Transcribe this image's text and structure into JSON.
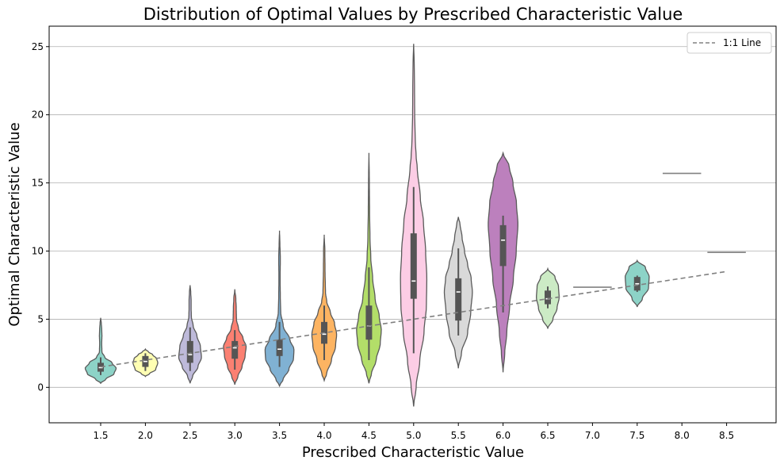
{
  "chart_data": {
    "type": "violin",
    "title": "Distribution of Optimal Values by Prescribed Characteristic Value",
    "xlabel": "Prescribed Characteristic Value",
    "ylabel": "Optimal Characteristic Value",
    "ylim": [
      -2.6,
      26.5
    ],
    "yticks": [
      "0",
      "5",
      "10",
      "15",
      "20",
      "25"
    ],
    "grid": "horizontal",
    "legend": {
      "placement": "top-right",
      "entries": [
        "1:1 Line"
      ]
    },
    "reference_line": {
      "name": "1:1 Line",
      "color": "#808080",
      "x": [
        1.5,
        8.5
      ],
      "y": [
        1.5,
        8.5
      ]
    },
    "categories": [
      "1.5",
      "2.0",
      "2.5",
      "3.0",
      "3.5",
      "4.0",
      "4.5",
      "5.0",
      "5.5",
      "6.0",
      "6.5",
      "7.0",
      "7.5",
      "8.0",
      "8.5"
    ],
    "violins": [
      {
        "category": "1.5",
        "color": "#8dd3c7",
        "q1": 1.15,
        "median": 1.45,
        "q3": 1.8,
        "wlo": 0.9,
        "whi": 2.2,
        "profile": [
          [
            0.3,
            0
          ],
          [
            0.6,
            0.25
          ],
          [
            1.0,
            0.65
          ],
          [
            1.4,
            0.75
          ],
          [
            1.8,
            0.55
          ],
          [
            2.2,
            0.2
          ],
          [
            2.6,
            0.06
          ],
          [
            3.2,
            0.05
          ],
          [
            3.8,
            0.06
          ],
          [
            4.3,
            0.05
          ],
          [
            4.7,
            0.03
          ],
          [
            5.1,
            0
          ]
        ]
      },
      {
        "category": "2.0",
        "color": "#ffffb3",
        "q1": 1.5,
        "median": 1.9,
        "q3": 2.3,
        "wlo": 1.2,
        "whi": 2.5,
        "profile": [
          [
            0.8,
            0
          ],
          [
            1.0,
            0.2
          ],
          [
            1.3,
            0.5
          ],
          [
            1.8,
            0.6
          ],
          [
            2.1,
            0.55
          ],
          [
            2.4,
            0.35
          ],
          [
            2.6,
            0.15
          ],
          [
            2.8,
            0
          ]
        ]
      },
      {
        "category": "2.5",
        "color": "#bebada",
        "q1": 1.8,
        "median": 2.4,
        "q3": 3.4,
        "wlo": 1.2,
        "whi": 4.4,
        "profile": [
          [
            0.3,
            0
          ],
          [
            0.8,
            0.12
          ],
          [
            1.5,
            0.38
          ],
          [
            2.2,
            0.55
          ],
          [
            3.0,
            0.5
          ],
          [
            3.8,
            0.33
          ],
          [
            4.5,
            0.15
          ],
          [
            5.2,
            0.06
          ],
          [
            5.8,
            0.05
          ],
          [
            6.4,
            0.05
          ],
          [
            7.0,
            0.03
          ],
          [
            7.5,
            0
          ]
        ]
      },
      {
        "category": "3.0",
        "color": "#fb8072",
        "q1": 2.1,
        "median": 2.9,
        "q3": 3.4,
        "wlo": 1.3,
        "whi": 4.2,
        "profile": [
          [
            0.2,
            0
          ],
          [
            0.8,
            0.15
          ],
          [
            1.5,
            0.35
          ],
          [
            2.3,
            0.5
          ],
          [
            3.0,
            0.55
          ],
          [
            3.6,
            0.4
          ],
          [
            4.3,
            0.18
          ],
          [
            5.0,
            0.08
          ],
          [
            5.8,
            0.07
          ],
          [
            6.5,
            0.05
          ],
          [
            7.2,
            0
          ]
        ]
      },
      {
        "category": "3.5",
        "color": "#80b1d3",
        "q1": 2.3,
        "median": 2.8,
        "q3": 3.5,
        "wlo": 1.5,
        "whi": 4.8,
        "profile": [
          [
            0.1,
            0
          ],
          [
            0.6,
            0.18
          ],
          [
            1.3,
            0.45
          ],
          [
            2.1,
            0.68
          ],
          [
            2.8,
            0.7
          ],
          [
            3.5,
            0.5
          ],
          [
            4.5,
            0.18
          ],
          [
            5.5,
            0.06
          ],
          [
            6.5,
            0.04
          ],
          [
            8.0,
            0.03
          ],
          [
            9.5,
            0.04
          ],
          [
            10.5,
            0.02
          ],
          [
            11.5,
            0
          ]
        ]
      },
      {
        "category": "4.0",
        "color": "#fdb462",
        "q1": 3.2,
        "median": 3.9,
        "q3": 4.8,
        "wlo": 2.0,
        "whi": 6.0,
        "profile": [
          [
            0.5,
            0
          ],
          [
            1.0,
            0.12
          ],
          [
            2.0,
            0.35
          ],
          [
            3.0,
            0.55
          ],
          [
            3.9,
            0.6
          ],
          [
            4.7,
            0.5
          ],
          [
            5.5,
            0.3
          ],
          [
            6.3,
            0.12
          ],
          [
            7.0,
            0.06
          ],
          [
            8.5,
            0.04
          ],
          [
            10.0,
            0.03
          ],
          [
            11.2,
            0
          ]
        ]
      },
      {
        "category": "4.5",
        "color": "#b3de69",
        "q1": 3.5,
        "median": 4.5,
        "q3": 6.0,
        "wlo": 2.0,
        "whi": 8.8,
        "profile": [
          [
            0.3,
            0
          ],
          [
            1.0,
            0.12
          ],
          [
            2.0,
            0.35
          ],
          [
            3.2,
            0.55
          ],
          [
            4.2,
            0.6
          ],
          [
            5.2,
            0.5
          ],
          [
            6.5,
            0.3
          ],
          [
            8.0,
            0.18
          ],
          [
            9.5,
            0.09
          ],
          [
            11.0,
            0.05
          ],
          [
            13.0,
            0.03
          ],
          [
            15.0,
            0.02
          ],
          [
            17.2,
            0
          ]
        ]
      },
      {
        "category": "5.0",
        "color": "#fccde5",
        "q1": 6.5,
        "median": 7.8,
        "q3": 11.3,
        "wlo": 2.5,
        "whi": 14.7,
        "profile": [
          [
            -1.4,
            0
          ],
          [
            0.0,
            0.12
          ],
          [
            2.0,
            0.3
          ],
          [
            4.0,
            0.5
          ],
          [
            6.0,
            0.62
          ],
          [
            8.0,
            0.64
          ],
          [
            10.0,
            0.58
          ],
          [
            12.0,
            0.48
          ],
          [
            14.0,
            0.32
          ],
          [
            16.0,
            0.18
          ],
          [
            17.0,
            0.12
          ],
          [
            18.0,
            0.08
          ],
          [
            20.0,
            0.05
          ],
          [
            22.5,
            0.04
          ],
          [
            24.0,
            0.025
          ],
          [
            25.2,
            0
          ]
        ]
      },
      {
        "category": "5.5",
        "color": "#d9d9d9",
        "q1": 4.9,
        "median": 7.0,
        "q3": 8.0,
        "wlo": 3.8,
        "whi": 10.2,
        "profile": [
          [
            1.4,
            0
          ],
          [
            2.5,
            0.15
          ],
          [
            4.0,
            0.45
          ],
          [
            5.5,
            0.6
          ],
          [
            7.0,
            0.68
          ],
          [
            8.0,
            0.62
          ],
          [
            9.0,
            0.45
          ],
          [
            10.0,
            0.3
          ],
          [
            11.0,
            0.18
          ],
          [
            12.0,
            0.08
          ],
          [
            12.5,
            0
          ]
        ]
      },
      {
        "category": "6.0",
        "color": "#bc80bd",
        "q1": 8.9,
        "median": 10.8,
        "q3": 11.9,
        "wlo": 5.5,
        "whi": 12.6,
        "profile": [
          [
            1.1,
            0
          ],
          [
            2.5,
            0.08
          ],
          [
            4.0,
            0.18
          ],
          [
            6.0,
            0.32
          ],
          [
            8.0,
            0.5
          ],
          [
            10.0,
            0.64
          ],
          [
            12.0,
            0.72
          ],
          [
            13.5,
            0.65
          ],
          [
            15.0,
            0.48
          ],
          [
            16.2,
            0.3
          ],
          [
            17.2,
            0
          ]
        ]
      },
      {
        "category": "6.5",
        "color": "#ccebc5",
        "q1": 6.1,
        "median": 6.5,
        "q3": 7.1,
        "wlo": 5.8,
        "whi": 7.4,
        "profile": [
          [
            4.3,
            0
          ],
          [
            5.0,
            0.25
          ],
          [
            5.8,
            0.45
          ],
          [
            6.6,
            0.55
          ],
          [
            7.4,
            0.52
          ],
          [
            8.1,
            0.35
          ],
          [
            8.7,
            0
          ]
        ]
      },
      {
        "category": "7.0",
        "color": "#808080",
        "flat": 7.35,
        "halfwidth": 0.43
      },
      {
        "category": "7.5",
        "color": "#8dd3c7",
        "q1": 7.1,
        "median": 7.6,
        "q3": 8.1,
        "wlo": 7.0,
        "whi": 8.2,
        "profile": [
          [
            5.9,
            0
          ],
          [
            6.5,
            0.25
          ],
          [
            7.3,
            0.55
          ],
          [
            8.1,
            0.58
          ],
          [
            8.8,
            0.4
          ],
          [
            9.3,
            0
          ]
        ]
      },
      {
        "category": "8.0",
        "color": "#808080",
        "flat": 15.7,
        "halfwidth": 0.43
      },
      {
        "category": "8.5",
        "color": "#808080",
        "flat": 9.9,
        "halfwidth": 0.43
      }
    ]
  }
}
